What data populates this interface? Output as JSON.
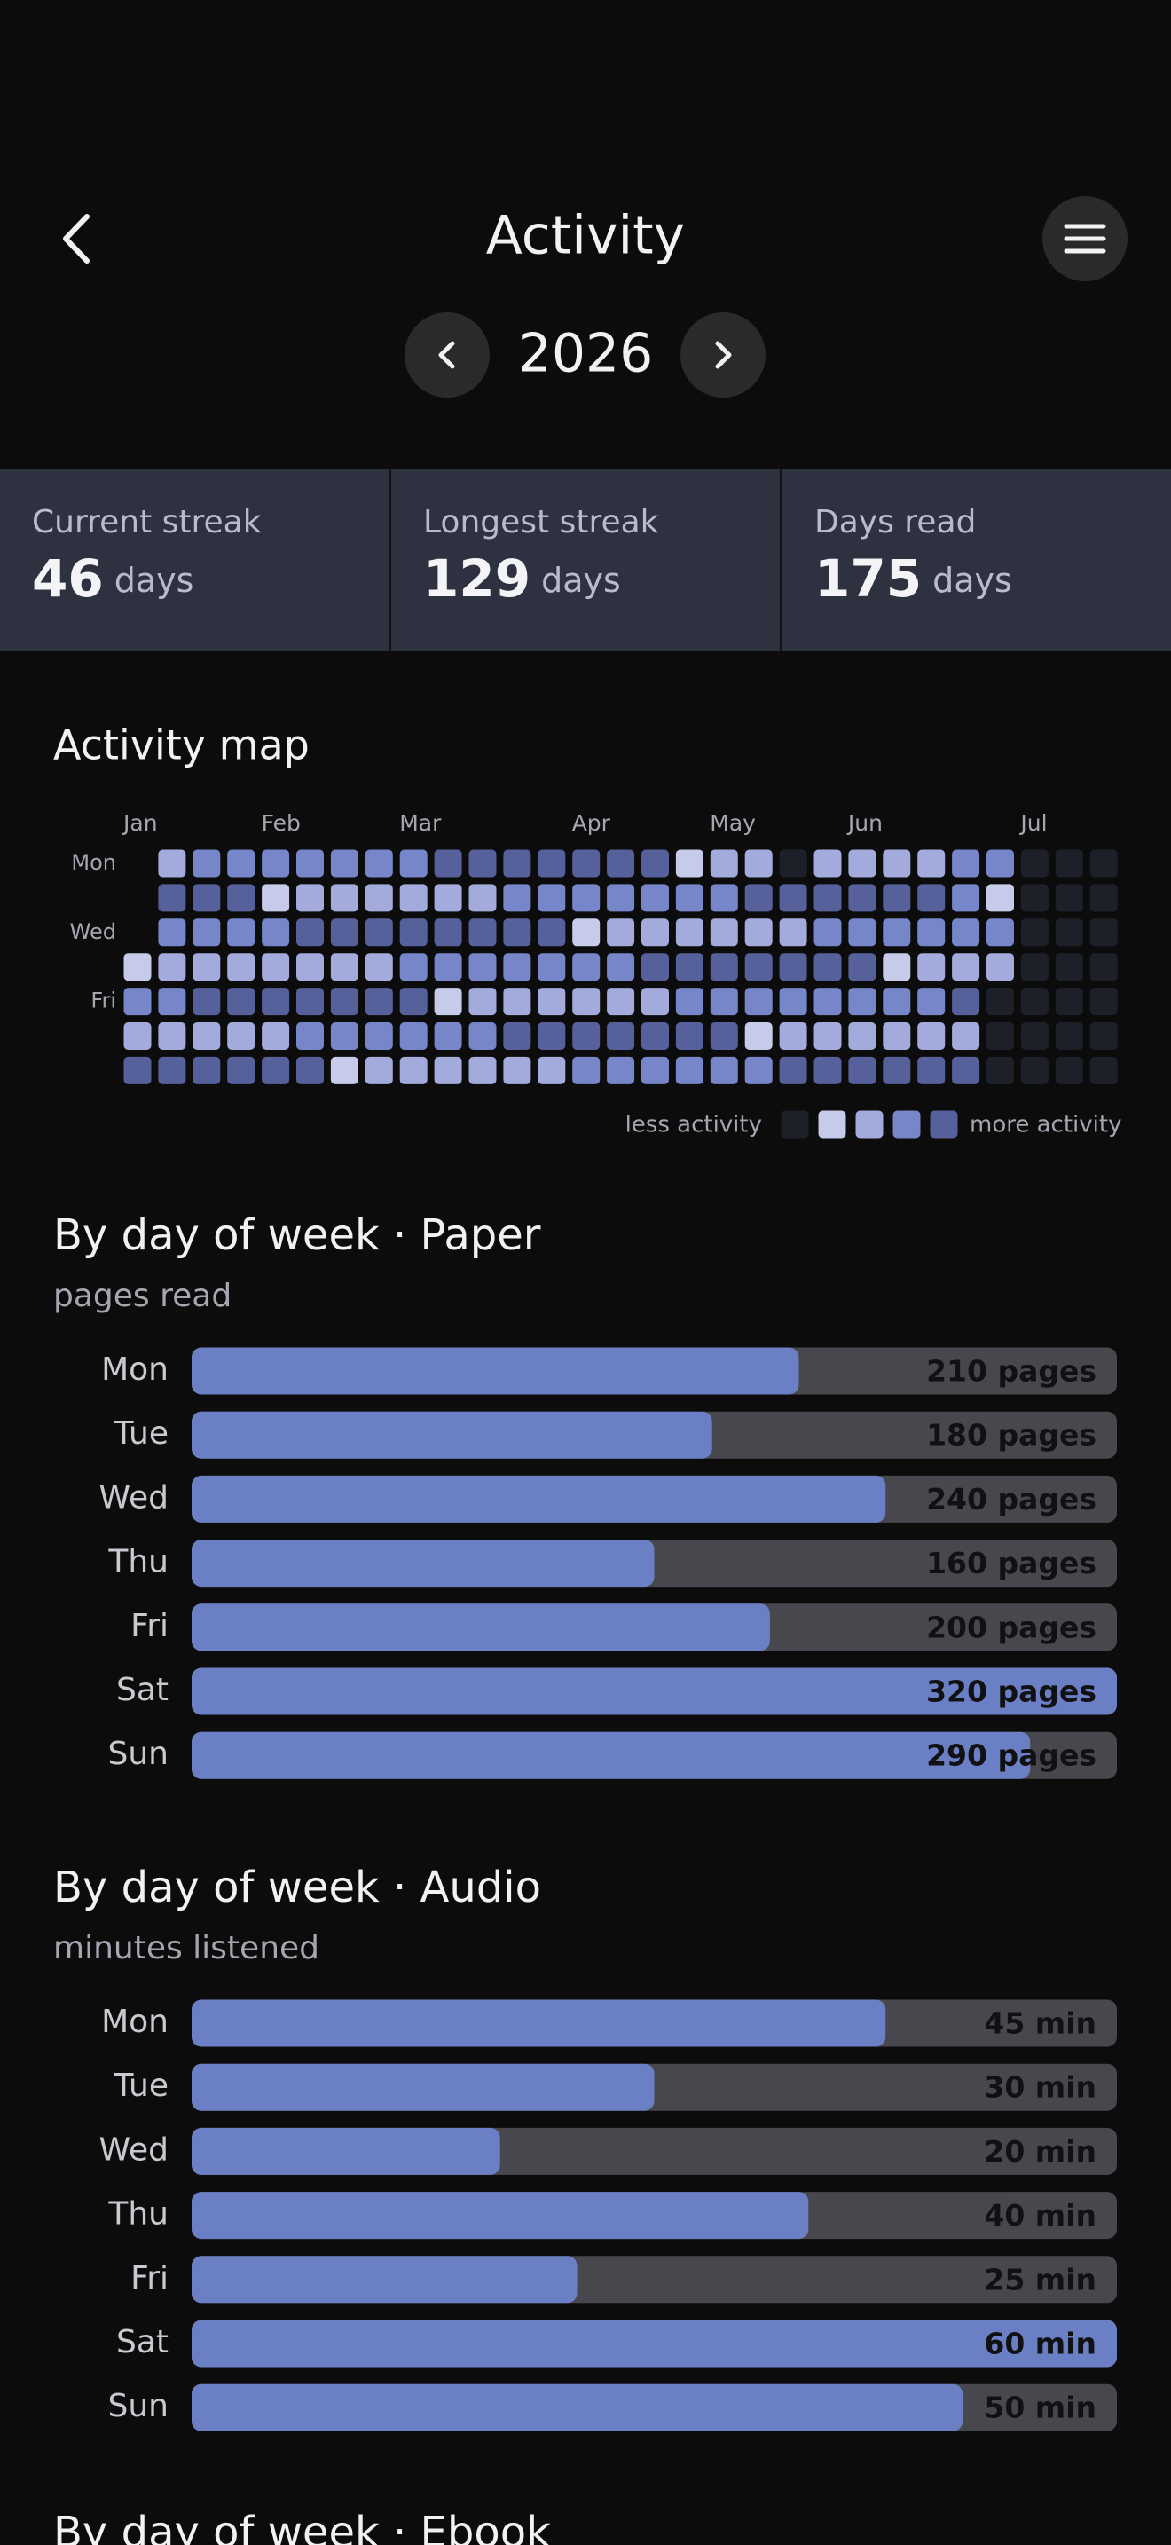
{
  "header": {
    "title": "Activity",
    "year": "2026"
  },
  "stats": [
    {
      "label": "Current streak",
      "value": 46,
      "unit": "days"
    },
    {
      "label": "Longest streak",
      "value": 129,
      "unit": "days"
    },
    {
      "label": "Days read",
      "value": 175,
      "unit": "days"
    }
  ],
  "activity_map": {
    "title": "Activity map",
    "columns": [
      "Jan",
      null,
      null,
      null,
      "Feb",
      null,
      null,
      null,
      "Mar",
      null,
      null,
      null,
      null,
      "Apr",
      null,
      null,
      null,
      "May",
      null,
      null,
      null,
      "Jun",
      null,
      null,
      null,
      null,
      "Jul",
      null,
      null
    ],
    "rows": [
      "Mon",
      null,
      "Wed",
      null,
      "Fri",
      null,
      null
    ],
    "levels": [
      [
        null,
        2,
        3,
        3,
        3,
        3,
        3,
        3,
        3,
        4,
        4,
        4,
        4,
        4,
        4,
        4,
        1,
        2,
        2,
        0,
        2,
        2,
        2,
        2,
        3,
        3,
        0,
        0,
        0
      ],
      [
        null,
        4,
        4,
        4,
        1,
        2,
        2,
        2,
        2,
        2,
        2,
        3,
        3,
        3,
        3,
        3,
        3,
        3,
        4,
        4,
        4,
        4,
        4,
        4,
        3,
        1,
        0,
        0,
        0
      ],
      [
        null,
        3,
        3,
        3,
        3,
        4,
        4,
        4,
        4,
        4,
        4,
        4,
        4,
        1,
        2,
        2,
        2,
        2,
        2,
        2,
        3,
        3,
        3,
        3,
        3,
        3,
        0,
        0,
        0
      ],
      [
        1,
        2,
        2,
        2,
        2,
        2,
        2,
        2,
        3,
        3,
        3,
        3,
        3,
        3,
        3,
        4,
        4,
        4,
        4,
        4,
        4,
        4,
        1,
        2,
        2,
        2,
        0,
        0,
        0
      ],
      [
        3,
        3,
        4,
        4,
        4,
        4,
        4,
        4,
        4,
        1,
        2,
        2,
        2,
        2,
        2,
        2,
        3,
        3,
        3,
        3,
        3,
        3,
        3,
        3,
        4,
        0,
        0,
        0,
        0
      ],
      [
        2,
        2,
        2,
        2,
        2,
        3,
        3,
        3,
        3,
        3,
        3,
        4,
        4,
        4,
        4,
        4,
        4,
        4,
        1,
        2,
        2,
        2,
        2,
        2,
        2,
        0,
        0,
        0,
        0
      ],
      [
        4,
        4,
        4,
        4,
        4,
        4,
        1,
        2,
        2,
        2,
        2,
        2,
        2,
        3,
        3,
        3,
        3,
        3,
        3,
        4,
        4,
        4,
        4,
        4,
        4,
        0,
        0,
        0,
        0
      ]
    ],
    "legend": {
      "less": "less activity",
      "more": "more activity",
      "levels": [
        0,
        1,
        2,
        3,
        4
      ],
      "colors": [
        "#1d2029",
        "#c5cbe8",
        "#a2abdb",
        "#7686c9",
        "#56619b"
      ]
    }
  },
  "sections": [
    {
      "title": "By day of week · Paper",
      "subtitle": "pages read",
      "categories": [
        "Mon",
        "Tue",
        "Wed",
        "Thu",
        "Fri",
        "Sat",
        "Sun"
      ],
      "values": [
        210,
        180,
        240,
        160,
        200,
        320,
        290
      ],
      "value_labels": [
        "210 pages",
        "180 pages",
        "240 pages",
        "160 pages",
        "200 pages",
        "320 pages",
        "290 pages"
      ],
      "color": "#6b80c4",
      "track_color": "#48474d"
    },
    {
      "title": "By day of week · Audio",
      "subtitle": "minutes listened",
      "categories": [
        "Mon",
        "Tue",
        "Wed",
        "Thu",
        "Fri",
        "Sat",
        "Sun"
      ],
      "values": [
        45,
        30,
        20,
        40,
        25,
        60,
        50
      ],
      "value_labels": [
        "45 min",
        "30 min",
        "20 min",
        "40 min",
        "25 min",
        "60 min",
        "50 min"
      ],
      "color": "#6b80c4",
      "track_color": "#48474d"
    },
    {
      "title": "By day of week · Ebook"
    }
  ]
}
